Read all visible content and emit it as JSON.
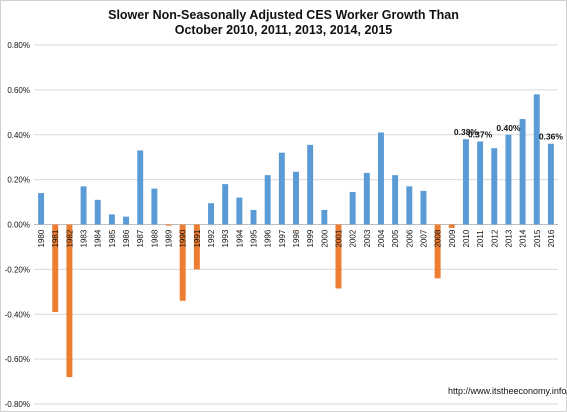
{
  "chart_data": {
    "type": "bar",
    "title_line1": "Slower Non-Seasonally Adjusted CES Worker Growth Than",
    "title_line2": "October 2010, 2011, 2013, 2014, 2015",
    "source": "http://www.itstheeconomy.info/",
    "ylim": [
      -0.8,
      0.8
    ],
    "yticks": [
      -0.8,
      -0.6,
      -0.4,
      -0.2,
      0.0,
      0.2,
      0.4,
      0.6,
      0.8
    ],
    "ytick_labels": [
      "-0.80%",
      "-0.60%",
      "-0.40%",
      "-0.20%",
      "0.00%",
      "0.20%",
      "0.40%",
      "0.60%",
      "0.80%"
    ],
    "grid": true,
    "colors": {
      "positive": "#5b9bd5",
      "negative": "#ed7d31",
      "grid": "#d9d9d9",
      "axis": "#bfbfbf"
    },
    "categories": [
      "1980",
      "1981",
      "1982",
      "1983",
      "1984",
      "1985",
      "1986",
      "1987",
      "1988",
      "1989",
      "1990",
      "1991",
      "1992",
      "1993",
      "1994",
      "1995",
      "1996",
      "1997",
      "1998",
      "1999",
      "2000",
      "2001",
      "2002",
      "2003",
      "2004",
      "2005",
      "2006",
      "2007",
      "2008",
      "2009",
      "2010",
      "2011",
      "2012",
      "2013",
      "2014",
      "2015",
      "2016"
    ],
    "values": [
      0.14,
      -0.39,
      -0.68,
      0.17,
      0.11,
      0.045,
      0.035,
      0.33,
      0.16,
      -0.005,
      -0.34,
      -0.2,
      0.095,
      0.18,
      0.12,
      0.065,
      0.22,
      0.32,
      0.235,
      0.355,
      0.065,
      -0.285,
      0.145,
      0.23,
      0.41,
      0.22,
      0.17,
      0.15,
      -0.24,
      -0.015,
      0.38,
      0.37,
      0.34,
      0.4,
      0.47,
      0.58,
      0.36
    ],
    "data_labels": [
      {
        "category": "2010",
        "text": "0.38%"
      },
      {
        "category": "2011",
        "text": "0.37%"
      },
      {
        "category": "2013",
        "text": "0.40%"
      },
      {
        "category": "2016",
        "text": "0.36%"
      }
    ]
  }
}
